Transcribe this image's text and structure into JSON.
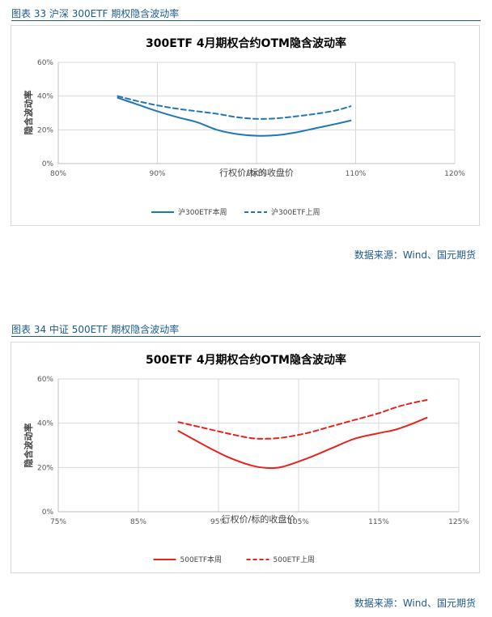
{
  "source_label": "数据来源：Wind、国元期货",
  "figures": [
    {
      "caption": "图表 33 沪深 300ETF 期权隐含波动率",
      "chart_data": {
        "type": "line",
        "title": "300ETF 4月期权合约OTM隐含波动率",
        "xlabel": "行权价/标的收盘价",
        "ylabel": "隐含波动率",
        "xlim": [
          0.8,
          1.2
        ],
        "ylim": [
          0,
          0.6
        ],
        "x_ticks": [
          0.8,
          0.9,
          1.0,
          1.1,
          1.2
        ],
        "y_ticks": [
          0,
          0.2,
          0.4,
          0.6
        ],
        "x_tick_labels": [
          "80%",
          "90%",
          "100%",
          "110%",
          "120%"
        ],
        "y_tick_labels": [
          "0%",
          "20%",
          "40%",
          "60%"
        ],
        "grid": true,
        "legend": "bottom",
        "series": [
          {
            "name": "沪300ETF本周",
            "style": "solid",
            "color": "#1f77b4",
            "x": [
              0.86,
              0.88,
              0.9,
              0.92,
              0.94,
              0.96,
              0.98,
              1.0,
              1.02,
              1.04,
              1.06,
              1.08,
              1.095
            ],
            "y": [
              0.39,
              0.35,
              0.31,
              0.275,
              0.245,
              0.2,
              0.175,
              0.165,
              0.168,
              0.185,
              0.21,
              0.235,
              0.255
            ]
          },
          {
            "name": "沪300ETF上周",
            "style": "dashed",
            "color": "#1f77b4",
            "x": [
              0.86,
              0.88,
              0.9,
              0.92,
              0.94,
              0.96,
              0.98,
              1.0,
              1.02,
              1.04,
              1.06,
              1.08,
              1.095
            ],
            "y": [
              0.4,
              0.37,
              0.345,
              0.325,
              0.31,
              0.295,
              0.275,
              0.265,
              0.268,
              0.28,
              0.295,
              0.315,
              0.34
            ]
          }
        ]
      }
    },
    {
      "caption": "图表 34 中证 500ETF 期权隐含波动率",
      "chart_data": {
        "type": "line",
        "title": "500ETF 4月期权合约OTM隐含波动率",
        "xlabel": "行权价/标的收盘价",
        "ylabel": "隐含波动率",
        "xlim": [
          0.75,
          1.25
        ],
        "ylim": [
          0,
          0.6
        ],
        "x_ticks": [
          0.75,
          0.85,
          0.95,
          1.05,
          1.15,
          1.25
        ],
        "y_ticks": [
          0,
          0.2,
          0.4,
          0.6
        ],
        "x_tick_labels": [
          "75%",
          "85%",
          "95%",
          "105%",
          "115%",
          "125%"
        ],
        "y_tick_labels": [
          "0%",
          "20%",
          "40%",
          "60%"
        ],
        "grid": true,
        "legend": "bottom",
        "series": [
          {
            "name": "500ETF本周",
            "style": "solid",
            "color": "#e8231a",
            "x": [
              0.9,
              0.93,
              0.96,
              0.99,
              1.01,
              1.03,
              1.06,
              1.09,
              1.12,
              1.15,
              1.17,
              1.19,
              1.21
            ],
            "y": [
              0.365,
              0.305,
              0.25,
              0.21,
              0.198,
              0.203,
              0.24,
              0.285,
              0.33,
              0.355,
              0.37,
              0.395,
              0.425
            ]
          },
          {
            "name": "500ETF上周",
            "style": "dashed",
            "color": "#e8231a",
            "x": [
              0.9,
              0.93,
              0.96,
              0.99,
              1.01,
              1.03,
              1.06,
              1.09,
              1.12,
              1.15,
              1.17,
              1.19,
              1.21
            ],
            "y": [
              0.405,
              0.38,
              0.355,
              0.333,
              0.33,
              0.335,
              0.355,
              0.385,
              0.415,
              0.445,
              0.47,
              0.49,
              0.505
            ]
          }
        ]
      }
    }
  ]
}
